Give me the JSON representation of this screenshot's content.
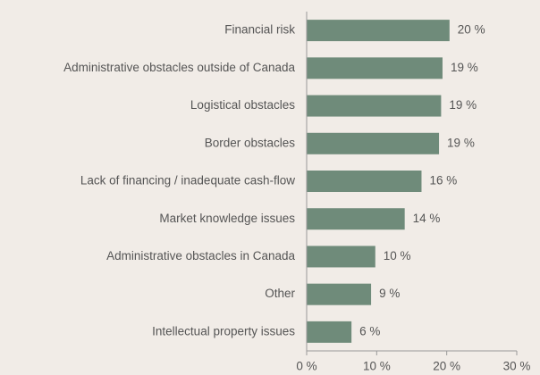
{
  "chart_data": {
    "type": "hbar",
    "categories": [
      "Financial risk",
      "Administrative obstacles outside of Canada",
      "Logistical obstacles",
      "Border obstacles",
      "Lack of financing / inadequate cash-flow",
      "Market knowledge issues",
      "Administrative obstacles in Canada",
      "Other",
      "Intellectual property issues"
    ],
    "values": [
      20.4,
      19.4,
      19.2,
      18.9,
      16.4,
      14.0,
      9.8,
      9.2,
      6.4
    ],
    "value_labels": [
      "20 %",
      "19 %",
      "19 %",
      "19 %",
      "16 %",
      "14 %",
      "10 %",
      "9 %",
      "6 %"
    ],
    "color": "#6f8b7a",
    "xlim": [
      0,
      30
    ],
    "xticks": [
      {
        "value": 0,
        "label": "0 %"
      },
      {
        "value": 10,
        "label": "10 %"
      },
      {
        "value": 20,
        "label": "20 %"
      },
      {
        "value": 30,
        "label": "30 %"
      }
    ]
  }
}
